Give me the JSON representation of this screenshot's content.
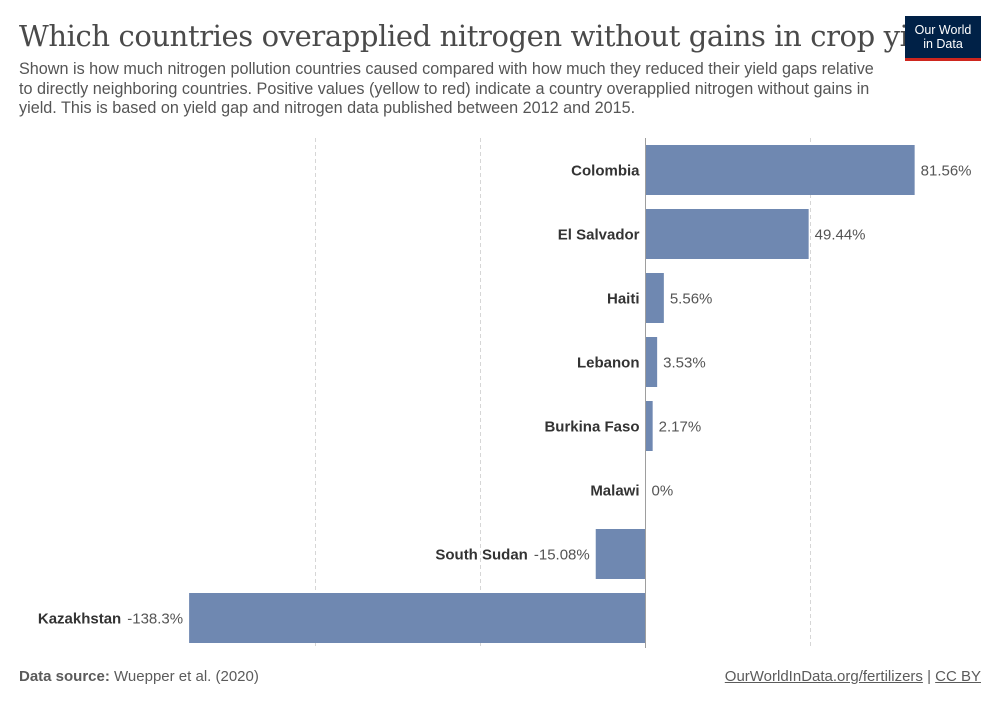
{
  "header": {
    "title": "Which countries overapplied nitrogen without gains in crop yields?",
    "subtitle": "Shown is how much nitrogen pollution countries caused compared with how much they reduced their yield gaps relative to directly neighboring countries. Positive values (yellow to red) indicate a country overapplied nitrogen without gains in yield. This is based on yield gap and nitrogen data published between 2012 and 2015."
  },
  "logo": {
    "line1": "Our World",
    "line2": "in Data"
  },
  "footer": {
    "source_label": "Data source:",
    "source_text": "Wuepper et al. (2020)",
    "link_text": "OurWorldInData.org/fertilizers",
    "separator": "|",
    "license": "CC BY"
  },
  "colors": {
    "bar": "#6f88b1",
    "grid": "#d6d6d6",
    "axis": "#9e9e9e",
    "label": "#333333",
    "value": "#555555"
  },
  "chart_data": {
    "type": "bar",
    "orientation": "horizontal",
    "title": "Which countries overapplied nitrogen without gains in crop yields?",
    "categories": [
      "Colombia",
      "El Salvador",
      "Haiti",
      "Lebanon",
      "Burkina Faso",
      "Malawi",
      "South Sudan",
      "Kazakhstan"
    ],
    "values": [
      81.56,
      49.44,
      5.56,
      3.53,
      2.17,
      0,
      -15.08,
      -138.3
    ],
    "value_labels": [
      "81.56%",
      "49.44%",
      "5.56%",
      "3.53%",
      "2.17%",
      "0%",
      "-15.08%",
      "-138.3%"
    ],
    "unit": "%",
    "xlim": [
      -150,
      100
    ],
    "gridlines": [
      -100,
      -50,
      50
    ],
    "grid": true,
    "legend": "none"
  }
}
